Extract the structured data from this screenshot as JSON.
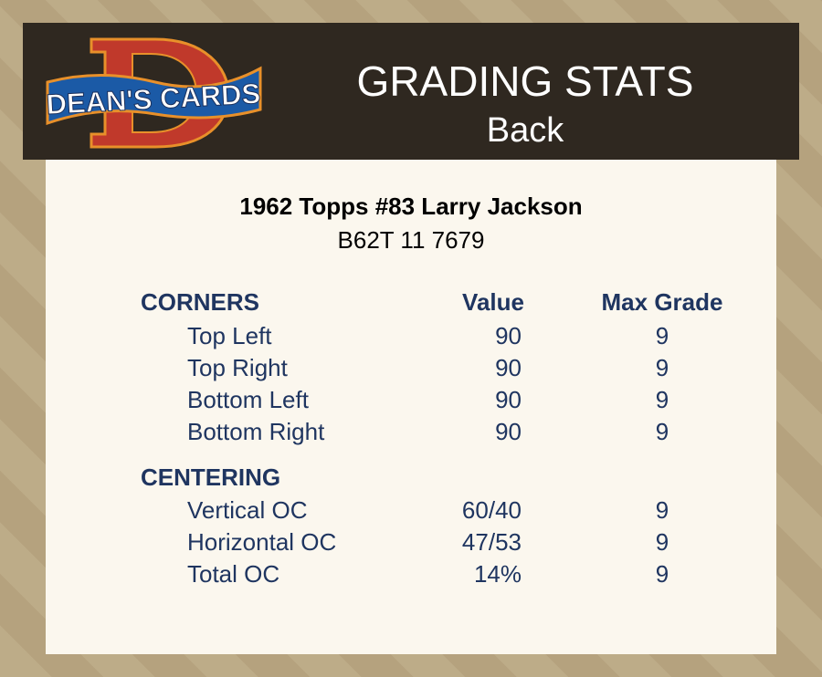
{
  "logo": {
    "text": "DEAN'S CARDS",
    "letter": "D"
  },
  "header": {
    "title": "GRADING STATS",
    "subtitle": "Back"
  },
  "card": {
    "name": "1962 Topps #83 Larry Jackson",
    "code": "B62T 11 7679"
  },
  "columns": {
    "value": "Value",
    "max": "Max Grade"
  },
  "sections": [
    {
      "title": "CORNERS",
      "rows": [
        {
          "label": "Top Left",
          "value": "90",
          "max": "9"
        },
        {
          "label": "Top Right",
          "value": "90",
          "max": "9"
        },
        {
          "label": "Bottom Left",
          "value": "90",
          "max": "9"
        },
        {
          "label": "Bottom Right",
          "value": "90",
          "max": "9"
        }
      ]
    },
    {
      "title": "CENTERING",
      "rows": [
        {
          "label": "Vertical OC",
          "value": "60/40",
          "max": "9"
        },
        {
          "label": "Horizontal OC",
          "value": "47/53",
          "max": "9"
        },
        {
          "label": "Total OC",
          "value": "14%",
          "max": "9"
        }
      ]
    }
  ]
}
